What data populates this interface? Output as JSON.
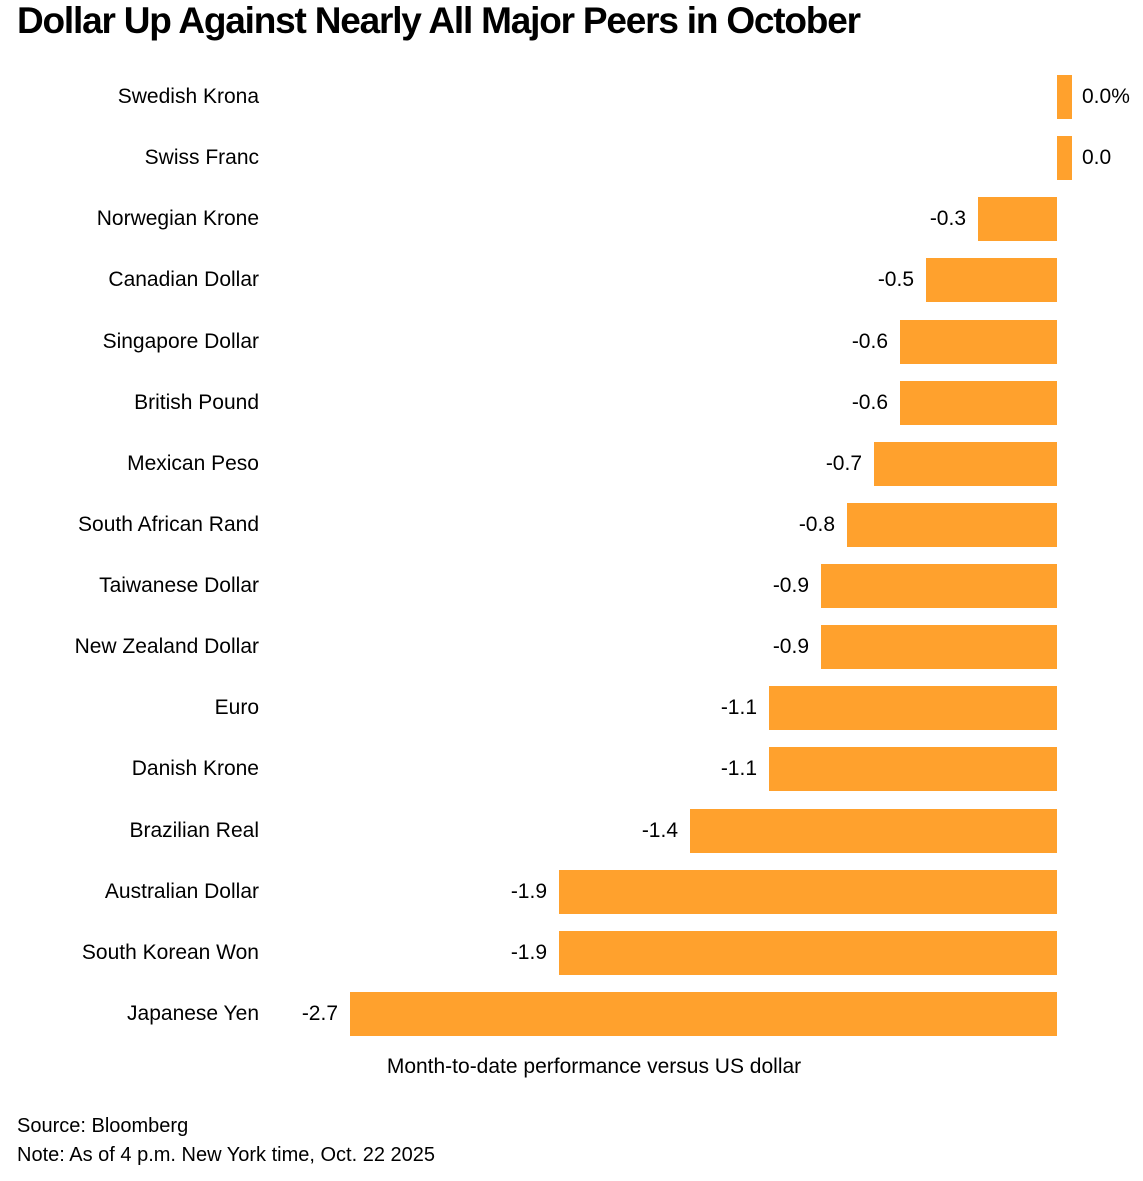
{
  "title": "Dollar Up Against Nearly All Major Peers in October",
  "chart_data": {
    "type": "bar",
    "orientation": "horizontal",
    "title": "Dollar Up Against Nearly All Major Peers in October",
    "xlabel": "Month-to-date performance versus US dollar",
    "ylabel": "",
    "xlim": [
      -2.7,
      0.1
    ],
    "grid": false,
    "legend": null,
    "bar_color": "#FFA12D",
    "categories": [
      "Swedish Krona",
      "Swiss Franc",
      "Norwegian Krone",
      "Canadian Dollar",
      "Singapore Dollar",
      "British Pound",
      "Mexican Peso",
      "South African Rand",
      "Taiwanese Dollar",
      "New Zealand Dollar",
      "Euro",
      "Danish Krone",
      "Brazilian Real",
      "Australian Dollar",
      "South Korean Won",
      "Japanese Yen"
    ],
    "values": [
      0.0,
      0.0,
      -0.3,
      -0.5,
      -0.6,
      -0.6,
      -0.7,
      -0.8,
      -0.9,
      -0.9,
      -1.1,
      -1.1,
      -1.4,
      -1.9,
      -1.9,
      -2.7
    ],
    "value_labels": [
      "0.0%",
      "0.0",
      "-0.3",
      "-0.5",
      "-0.6",
      "-0.6",
      "-0.7",
      "-0.8",
      "-0.9",
      "-0.9",
      "-1.1",
      "-1.1",
      "-1.4",
      "-1.9",
      "-1.9",
      "-2.7"
    ]
  },
  "footer": {
    "source": "Source: Bloomberg",
    "note": "Note: As of 4 p.m. New York time, Oct. 22 2025"
  }
}
